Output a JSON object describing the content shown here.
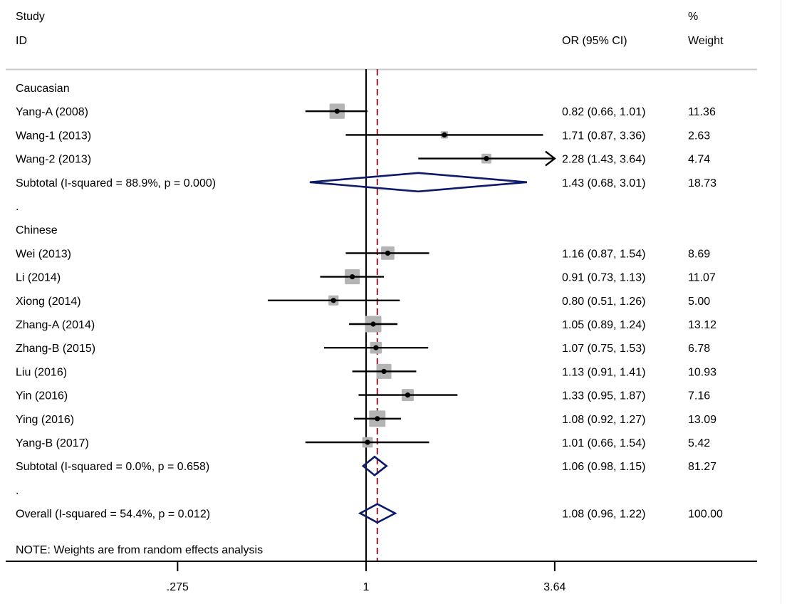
{
  "chart_data": {
    "type": "forest",
    "measure": "OR",
    "scale": "log",
    "header": {
      "study_label_line1": "Study",
      "study_label_line2": "ID",
      "effect_label": "OR (95% CI)",
      "weight_label_line1": "%",
      "weight_label_line2": "Weight"
    },
    "null_value": 1,
    "overall_line_value": 1.08,
    "xticks": [
      {
        "value": 0.275,
        "label": ".275"
      },
      {
        "value": 1,
        "label": "1"
      },
      {
        "value": 3.64,
        "label": "3.64"
      }
    ],
    "xlim": [
      0.275,
      3.64
    ],
    "rows": [
      {
        "kind": "group",
        "label": "Caucasian"
      },
      {
        "kind": "study",
        "label": "Yang-A (2008)",
        "or": 0.82,
        "lo": 0.66,
        "hi": 1.01,
        "ci_text": "0.82 (0.66, 1.01)",
        "weight": 11.36,
        "weight_text": "11.36"
      },
      {
        "kind": "study",
        "label": "Wang-1 (2013)",
        "or": 1.71,
        "lo": 0.87,
        "hi": 3.36,
        "ci_text": "1.71 (0.87, 3.36)",
        "weight": 2.63,
        "weight_text": "2.63"
      },
      {
        "kind": "study",
        "label": "Wang-2 (2013)",
        "or": 2.28,
        "lo": 1.43,
        "hi": 3.64,
        "ci_text": "2.28 (1.43, 3.64)",
        "weight": 4.74,
        "weight_text": "4.74",
        "arrow_right": true
      },
      {
        "kind": "subtotal",
        "label": "Subtotal  (I-squared = 88.9%, p = 0.000)",
        "or": 1.43,
        "lo": 0.68,
        "hi": 3.01,
        "ci_text": "1.43 (0.68, 3.01)",
        "weight": 18.73,
        "weight_text": "18.73"
      },
      {
        "kind": "spacer",
        "label": "."
      },
      {
        "kind": "group",
        "label": "Chinese"
      },
      {
        "kind": "study",
        "label": "Wei (2013)",
        "or": 1.16,
        "lo": 0.87,
        "hi": 1.54,
        "ci_text": "1.16 (0.87, 1.54)",
        "weight": 8.69,
        "weight_text": "8.69"
      },
      {
        "kind": "study",
        "label": "Li (2014)",
        "or": 0.91,
        "lo": 0.73,
        "hi": 1.13,
        "ci_text": "0.91 (0.73, 1.13)",
        "weight": 11.07,
        "weight_text": "11.07"
      },
      {
        "kind": "study",
        "label": "Xiong (2014)",
        "or": 0.8,
        "lo": 0.51,
        "hi": 1.26,
        "ci_text": "0.80 (0.51, 1.26)",
        "weight": 5.0,
        "weight_text": "5.00"
      },
      {
        "kind": "study",
        "label": "Zhang-A (2014)",
        "or": 1.05,
        "lo": 0.89,
        "hi": 1.24,
        "ci_text": "1.05 (0.89, 1.24)",
        "weight": 13.12,
        "weight_text": "13.12"
      },
      {
        "kind": "study",
        "label": "Zhang-B (2015)",
        "or": 1.07,
        "lo": 0.75,
        "hi": 1.53,
        "ci_text": "1.07 (0.75, 1.53)",
        "weight": 6.78,
        "weight_text": "6.78"
      },
      {
        "kind": "study",
        "label": "Liu (2016)",
        "or": 1.13,
        "lo": 0.91,
        "hi": 1.41,
        "ci_text": "1.13 (0.91, 1.41)",
        "weight": 10.93,
        "weight_text": "10.93"
      },
      {
        "kind": "study",
        "label": "Yin (2016)",
        "or": 1.33,
        "lo": 0.95,
        "hi": 1.87,
        "ci_text": "1.33 (0.95, 1.87)",
        "weight": 7.16,
        "weight_text": "7.16"
      },
      {
        "kind": "study",
        "label": "Ying (2016)",
        "or": 1.08,
        "lo": 0.92,
        "hi": 1.27,
        "ci_text": "1.08 (0.92, 1.27)",
        "weight": 13.09,
        "weight_text": "13.09"
      },
      {
        "kind": "study",
        "label": "Yang-B (2017)",
        "or": 1.01,
        "lo": 0.66,
        "hi": 1.54,
        "ci_text": "1.01 (0.66, 1.54)",
        "weight": 5.42,
        "weight_text": "5.42"
      },
      {
        "kind": "subtotal",
        "label": "Subtotal  (I-squared = 0.0%, p = 0.658)",
        "or": 1.06,
        "lo": 0.98,
        "hi": 1.15,
        "ci_text": "1.06 (0.98, 1.15)",
        "weight": 81.27,
        "weight_text": "81.27"
      },
      {
        "kind": "spacer",
        "label": "."
      },
      {
        "kind": "overall",
        "label": "Overall  (I-squared = 54.4%, p = 0.012)",
        "or": 1.08,
        "lo": 0.96,
        "hi": 1.22,
        "ci_text": "1.08 (0.96, 1.22)",
        "weight": 100.0,
        "weight_text": "100.00"
      }
    ],
    "note": "NOTE: Weights are from random effects analysis",
    "colors": {
      "text": "#000000",
      "ci_line": "#000000",
      "weight_box": "#b4b4b4",
      "diamond": "#0b1a6b",
      "null_line": "#000000",
      "overall_line": "#9b1c2a",
      "header_rule": "#c8c8c8"
    }
  }
}
